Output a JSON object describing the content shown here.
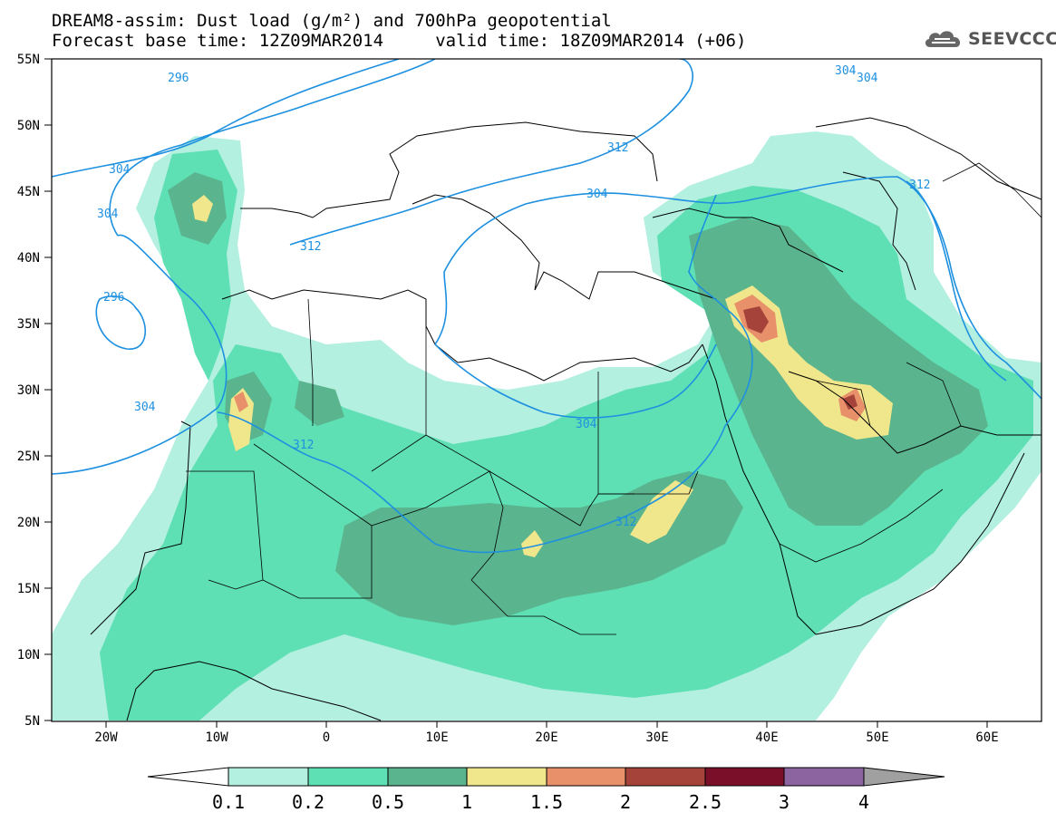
{
  "title": {
    "line1": "DREAM8-assim: Dust load (g/m²) and 700hPa geopotential",
    "line2": "Forecast base time: 12Z09MAR2014     valid time: 18Z09MAR2014 (+06)"
  },
  "logo": {
    "text": "SEEVCCC",
    "icon": "cloud-icon"
  },
  "axes": {
    "lat_labels": [
      "55N",
      "50N",
      "45N",
      "40N",
      "35N",
      "30N",
      "25N",
      "20N",
      "15N",
      "10N",
      "5N"
    ],
    "lon_labels": [
      "20W",
      "10W",
      "0",
      "10E",
      "20E",
      "30E",
      "40E",
      "50E",
      "60E"
    ]
  },
  "contours": {
    "labels": [
      "296",
      "304",
      "304",
      "296",
      "304",
      "312",
      "304",
      "312",
      "312",
      "304",
      "312",
      "312",
      "304",
      "304"
    ]
  },
  "colorbar": {
    "ticks": [
      "0.1",
      "0.2",
      "0.5",
      "1",
      "1.5",
      "2",
      "2.5",
      "3",
      "4"
    ],
    "colors": [
      "#ffffff",
      "#b4f0e0",
      "#5ee0b4",
      "#5ab48e",
      "#f0e68c",
      "#e8906a",
      "#a5433a",
      "#7a0f2a",
      "#8c64a0",
      "#a0a0a0"
    ]
  },
  "palette": {
    "dust_0_1": "#b4f0e0",
    "dust_0_2": "#5ee0b4",
    "dust_0_5": "#5ab48e",
    "dust_1": "#f0e68c",
    "dust_1_5": "#e8906a",
    "dust_2": "#a5433a",
    "contour": "#1e90e0"
  }
}
